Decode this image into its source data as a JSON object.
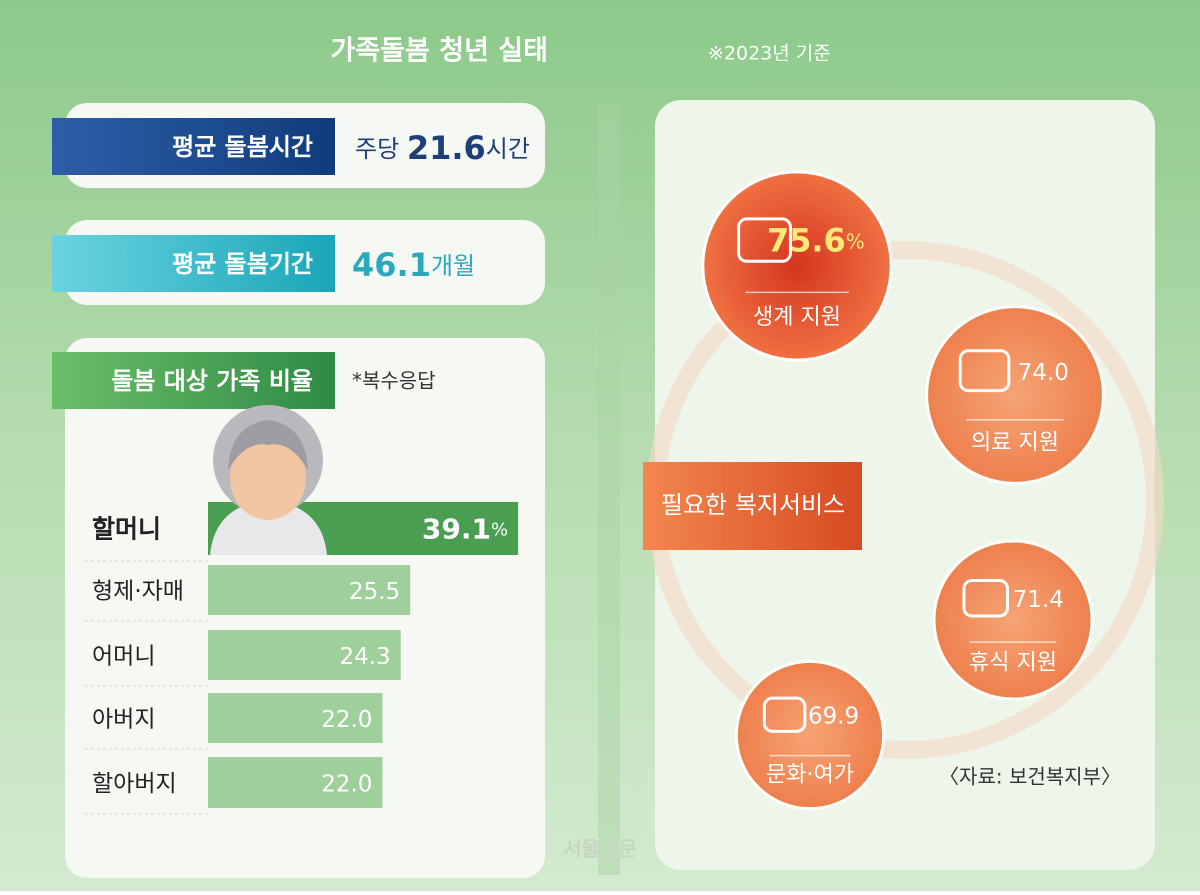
{
  "header": {
    "title": "가족돌봄 청년 실태",
    "note": "※2023년 기준"
  },
  "stats": [
    {
      "label": "평균 돌봄시간",
      "prefix": "주당",
      "value": 21.6,
      "unit": "시간"
    },
    {
      "label": "평균 돌봄기간",
      "value": 46.1,
      "unit": "개월"
    }
  ],
  "chart_data": [
    {
      "type": "bar",
      "title": "돌봄 대상 가족 비율",
      "subtitle": "*복수응답",
      "categories": [
        "할머니",
        "형제·자매",
        "어머니",
        "아버지",
        "할아버지"
      ],
      "values": [
        39.1,
        25.5,
        24.3,
        22.0,
        22.0
      ],
      "value_labels": [
        "39.1",
        "25.5",
        "24.3",
        "22.0",
        "22.0"
      ],
      "unit": "%",
      "color": "#9fd09b",
      "highlight_color": "#4a9e52"
    },
    {
      "type": "bubble",
      "title": "필요한 복지서비스",
      "categories": [
        "생계 지원",
        "의료 지원",
        "휴식 지원",
        "문화·여가"
      ],
      "values": [
        75.6,
        74.0,
        71.4,
        69.9
      ],
      "value_labels": [
        "75.6",
        "74.0",
        "71.4",
        "69.9"
      ],
      "unit": "%",
      "color": "#f28a58",
      "highlight_color": "#d9361a"
    }
  ],
  "source": "〈자료: 보건복지부〉",
  "logo": "서울신문"
}
